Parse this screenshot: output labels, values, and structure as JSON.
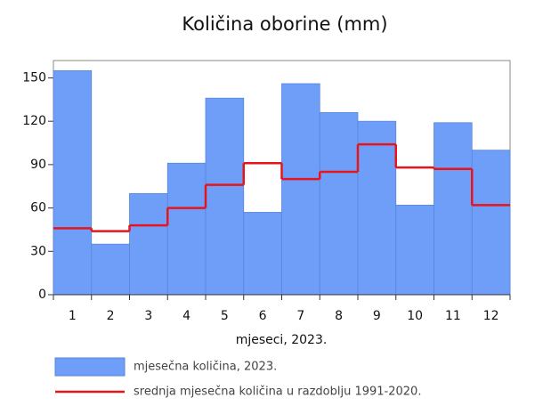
{
  "chart_data": {
    "type": "bar",
    "title": "Količina oborine (mm)",
    "xlabel": "mjeseci, 2023.",
    "categories": [
      "1",
      "2",
      "3",
      "4",
      "5",
      "6",
      "7",
      "8",
      "9",
      "10",
      "11",
      "12"
    ],
    "series": [
      {
        "name": "mjesečna količina, 2023.",
        "color": "#6e9ef8",
        "values": [
          155,
          35,
          70,
          91,
          136,
          57,
          146,
          126,
          120,
          62,
          119,
          100
        ]
      },
      {
        "name": "srednja mjesečna količina u razdoblju 1991-2020.",
        "color": "#e8141c",
        "style": "step",
        "values": [
          46,
          44,
          48,
          60,
          76,
          91,
          80,
          85,
          104,
          88,
          87,
          62
        ]
      }
    ],
    "ylim": [
      0,
      162
    ],
    "yticks": [
      0,
      30,
      60,
      90,
      120,
      150
    ],
    "grid": false
  }
}
